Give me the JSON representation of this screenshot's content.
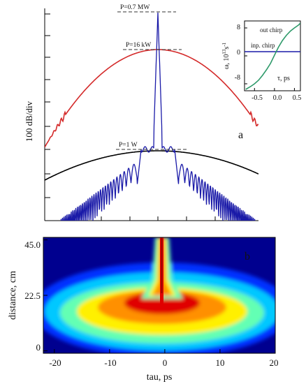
{
  "chart_data": [
    {
      "panel_label": "a",
      "type": "line",
      "ylabel": "100 dB/div",
      "levels": [
        "P=0.7 MW",
        "P=16 kW",
        "P=1 W"
      ],
      "series": [
        {
          "color": "#d42a2a"
        },
        {
          "color": "#1a1aa8"
        },
        {
          "color": "#000000"
        }
      ]
    },
    {
      "panel_label": "",
      "type": "line",
      "xlabel": "τ, ps",
      "ylabel_main": "ω, 10",
      "ylabel_exp": "13",
      "ylabel_tail": "s",
      "ylabel_tail_exp": "-1",
      "xticks": [
        "-0.5",
        "0.0",
        "0.5"
      ],
      "yticks": [
        "8",
        "0",
        "-8"
      ],
      "xlim": [
        -0.75,
        0.65
      ],
      "ylim": [
        -10,
        10
      ],
      "series": [
        {
          "name": "out chirp",
          "color": "#2e9a6a",
          "x": [
            -0.72,
            -0.6,
            -0.5,
            -0.4,
            -0.3,
            -0.2,
            -0.1,
            0.0,
            0.1,
            0.2,
            0.3,
            0.4,
            0.5,
            0.6,
            0.65
          ],
          "y": [
            -9.6,
            -8.8,
            -8.0,
            -7.0,
            -5.6,
            -4.0,
            -2.2,
            0.2,
            2.5,
            4.4,
            5.9,
            7.1,
            8.0,
            8.8,
            9.4
          ]
        },
        {
          "name": "inp. chirp",
          "color": "#1a1aa8",
          "x": [
            -0.75,
            0.65
          ],
          "y": [
            0,
            0
          ]
        }
      ]
    },
    {
      "panel_label": "b",
      "type": "heatmap",
      "xlabel": "tau, ps",
      "ylabel": "distance, cm",
      "xticks": [
        "-20",
        "-10",
        "0",
        "10",
        "20"
      ],
      "yticks": [
        "0",
        "22.5",
        "45.0"
      ],
      "xlim": [
        -22,
        20
      ],
      "ylim": [
        -1,
        46
      ],
      "colormap": [
        "#00008f",
        "#0030ff",
        "#00c8ff",
        "#64ffb4",
        "#fff000",
        "#ff9000",
        "#e00000",
        "#9a0000"
      ]
    }
  ]
}
